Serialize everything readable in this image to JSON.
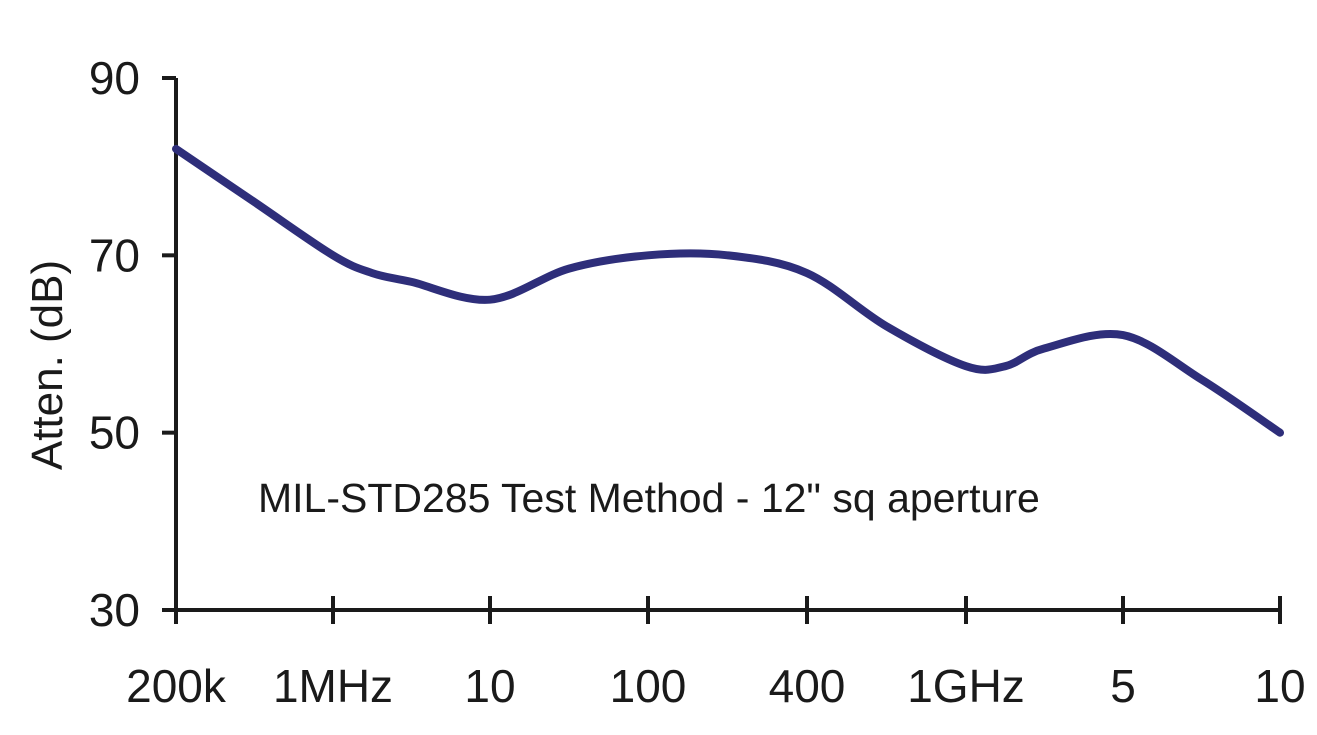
{
  "chart_data": {
    "type": "line",
    "title": "",
    "xlabel": "",
    "ylabel": "Atten. (dB)",
    "annotation": "MIL-STD285 Test Method - 12\" sq aperture",
    "x_tick_labels": [
      "200k",
      "1MHz",
      "10",
      "100",
      "400",
      "1GHz",
      "5",
      "10"
    ],
    "y_ticks": [
      30,
      50,
      70,
      90
    ],
    "ylim": [
      30,
      90
    ],
    "grid": false,
    "series": [
      {
        "color": "#2e2e7a",
        "x": [
          0,
          0.5,
          1,
          1.25,
          1.5,
          2.0,
          2.5,
          3.0,
          3.5,
          4.0,
          4.5,
          5.0,
          5.25,
          5.5,
          6.0,
          6.5,
          7.0
        ],
        "y": [
          82,
          76,
          70,
          68,
          67,
          65,
          68.5,
          70,
          70,
          68,
          62,
          57.5,
          57.5,
          59.5,
          61,
          56,
          50
        ]
      }
    ]
  }
}
